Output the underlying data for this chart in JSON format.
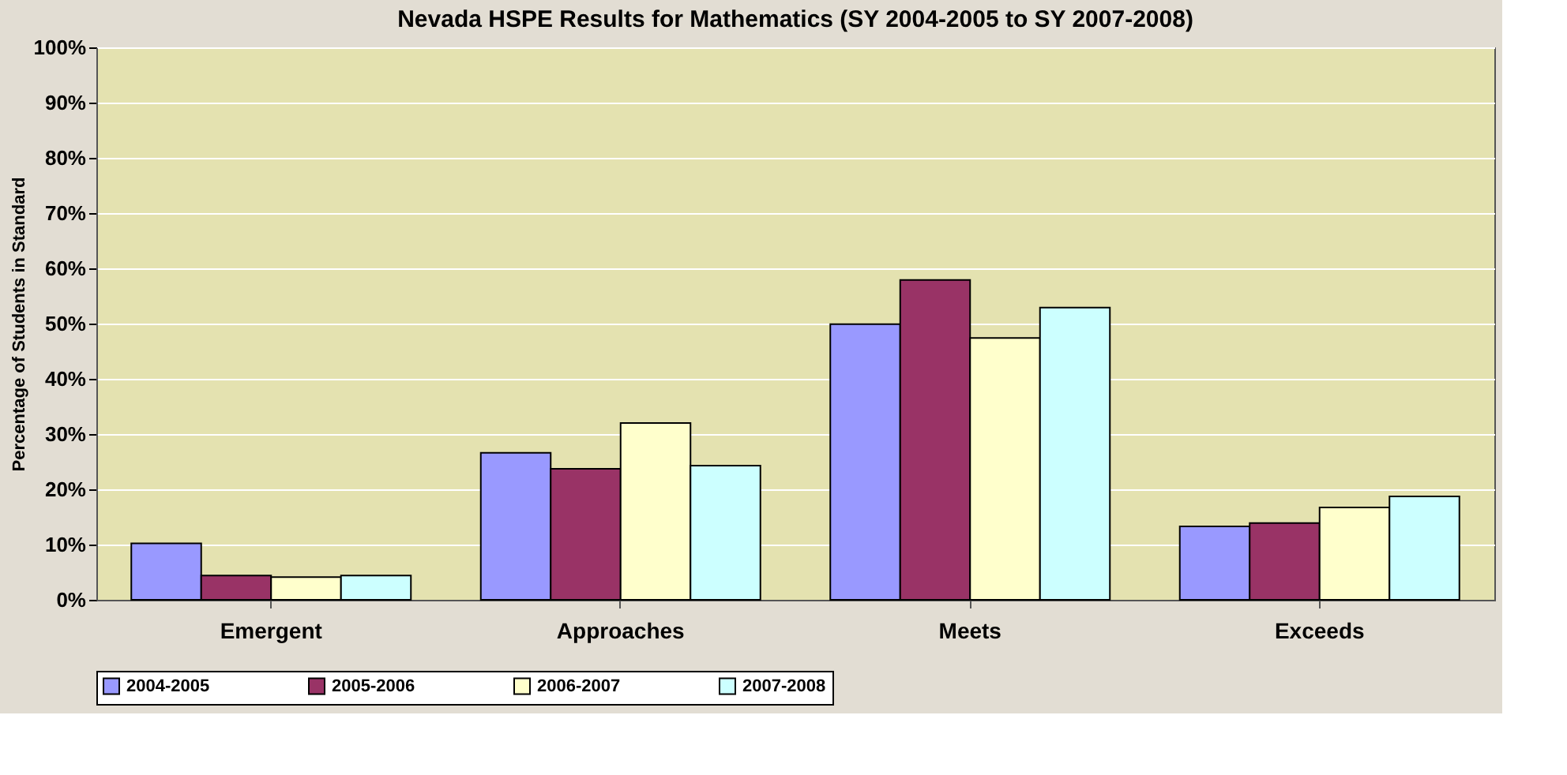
{
  "chart_data": {
    "type": "bar",
    "title": "Nevada HSPE Results for Mathematics (SY 2004-2005 to SY 2007-2008)",
    "ylabel": "Percentage of Students in Standard",
    "categories": [
      "Emergent",
      "Approaches",
      "Meets",
      "Exceeds"
    ],
    "series": [
      {
        "name": "2004-2005",
        "color": "#9999ff",
        "values": [
          10.2,
          26.6,
          49.9,
          13.3
        ]
      },
      {
        "name": "2005-2006",
        "color": "#993366",
        "values": [
          4.4,
          23.7,
          57.9,
          13.9
        ]
      },
      {
        "name": "2006-2007",
        "color": "#ffffcc",
        "values": [
          4.1,
          32.0,
          47.4,
          16.7
        ]
      },
      {
        "name": "2007-2008",
        "color": "#ccffff",
        "values": [
          4.4,
          24.3,
          52.9,
          18.7
        ]
      }
    ],
    "ylim": [
      0,
      100
    ],
    "yticks": [
      {
        "value": 0,
        "label": "0%"
      },
      {
        "value": 10,
        "label": "10%"
      },
      {
        "value": 20,
        "label": "20%"
      },
      {
        "value": 30,
        "label": "30%"
      },
      {
        "value": 40,
        "label": "40%"
      },
      {
        "value": 50,
        "label": "50%"
      },
      {
        "value": 60,
        "label": "60%"
      },
      {
        "value": 70,
        "label": "70%"
      },
      {
        "value": 80,
        "label": "80%"
      },
      {
        "value": 90,
        "label": "90%"
      },
      {
        "value": 100,
        "label": "100%"
      }
    ],
    "grid": "y",
    "legend": "bottom"
  }
}
